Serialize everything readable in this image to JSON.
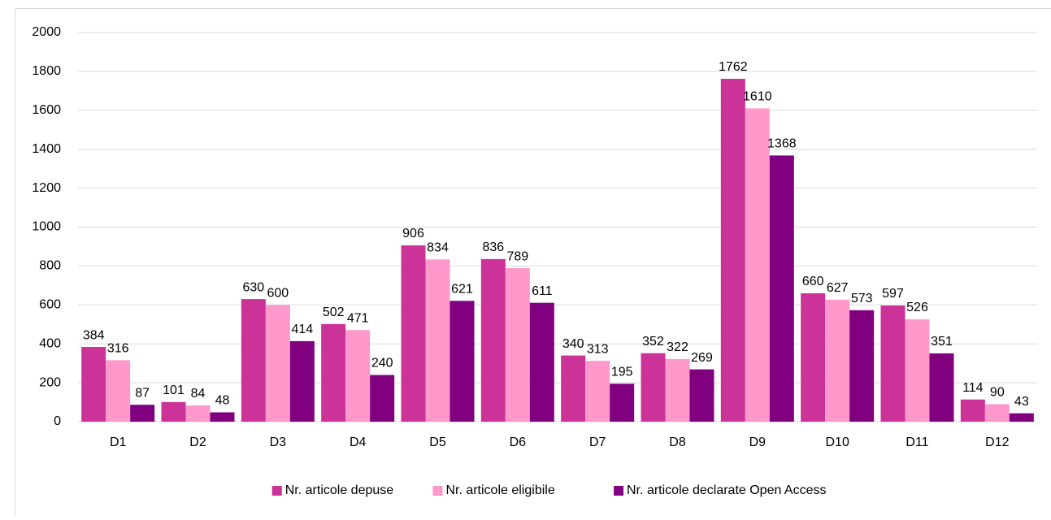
{
  "chart_data": {
    "type": "bar",
    "categories": [
      "D1",
      "D2",
      "D3",
      "D4",
      "D5",
      "D6",
      "D7",
      "D8",
      "D9",
      "D10",
      "D11",
      "D12"
    ],
    "series": [
      {
        "name": "Nr. articole depuse",
        "color": "#cc3399",
        "values": [
          384,
          101,
          630,
          502,
          906,
          836,
          340,
          352,
          1762,
          660,
          597,
          114
        ]
      },
      {
        "name": "Nr. articole eligibile",
        "color": "#ff99cc",
        "values": [
          316,
          84,
          600,
          471,
          834,
          789,
          313,
          322,
          1610,
          627,
          526,
          90
        ]
      },
      {
        "name": "Nr. articole declarate Open Access",
        "color": "#800080",
        "values": [
          87,
          48,
          414,
          240,
          621,
          611,
          195,
          269,
          1368,
          573,
          351,
          43
        ]
      }
    ],
    "ylim": [
      0,
      2000
    ],
    "yticks": [
      0,
      200,
      400,
      600,
      800,
      1000,
      1200,
      1400,
      1600,
      1800,
      2000
    ],
    "grid": true,
    "legend": "bottom"
  }
}
